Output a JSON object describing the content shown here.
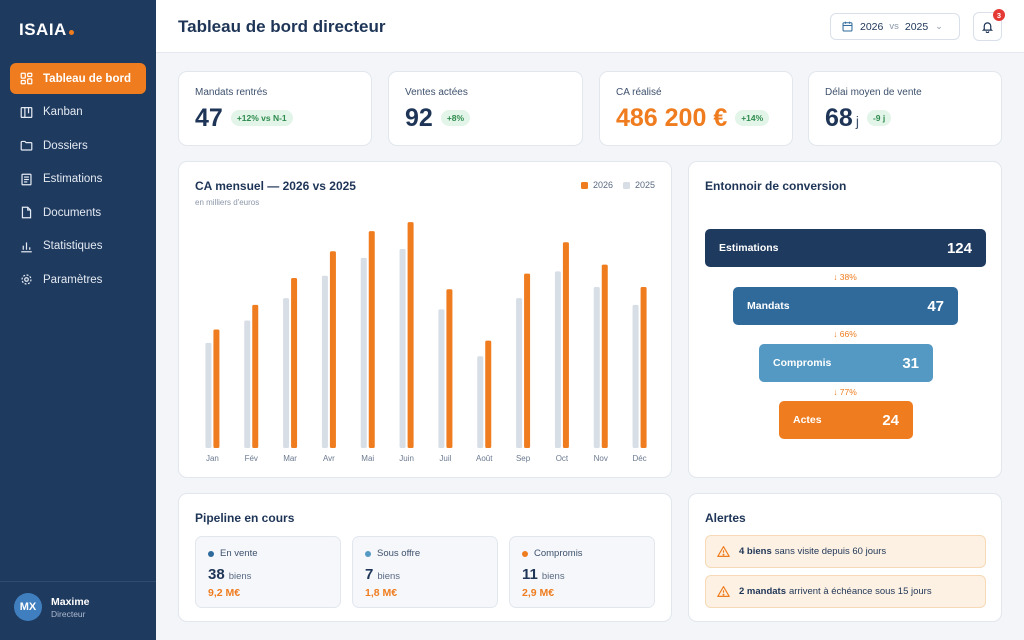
{
  "brand": {
    "name": "ISAIA",
    "accent": "#ef7c1e"
  },
  "sidebar": {
    "items": [
      {
        "label": "Tableau de bord",
        "icon": "dashboard-icon"
      },
      {
        "label": "Kanban",
        "icon": "kanban-icon"
      },
      {
        "label": "Dossiers",
        "icon": "folder-icon"
      },
      {
        "label": "Estimations",
        "icon": "estimate-icon"
      },
      {
        "label": "Documents",
        "icon": "document-icon"
      },
      {
        "label": "Statistiques",
        "icon": "stats-icon"
      },
      {
        "label": "Paramètres",
        "icon": "gear-icon"
      }
    ],
    "active": "Tableau de bord",
    "user": {
      "initials": "MX",
      "name": "Maxime",
      "role": "Directeur"
    }
  },
  "header": {
    "title": "Tableau de bord directeur",
    "compare": {
      "year_a": "2026",
      "vs": "vs",
      "year_b": "2025"
    },
    "notifications": "3"
  },
  "kpis": [
    {
      "label": "Mandats rentrés",
      "value": "47",
      "unit": "",
      "badge": "+12% vs N-1",
      "highlight": false
    },
    {
      "label": "Ventes actées",
      "value": "92",
      "unit": "",
      "badge": "+8%",
      "highlight": false
    },
    {
      "label": "CA réalisé",
      "value": "486 200 €",
      "unit": "",
      "badge": "+14%",
      "highlight": true
    },
    {
      "label": "Délai moyen de vente",
      "value": "68",
      "unit": "j",
      "badge": "-9 j",
      "highlight": false
    }
  ],
  "chart": {
    "title": "CA mensuel — 2026 vs 2025",
    "subtitle": "en milliers d'euros",
    "legend": [
      "2026",
      "2025"
    ]
  },
  "chart_data": {
    "type": "bar",
    "title": "CA mensuel — 2026 vs 2025",
    "subtitle": "en milliers d'euros",
    "categories": [
      "Jan",
      "Fév",
      "Mar",
      "Avr",
      "Mai",
      "Juin",
      "Juil",
      "Août",
      "Sep",
      "Oct",
      "Nov",
      "Déc"
    ],
    "series": [
      {
        "name": "2026",
        "color": "#ef7c1e",
        "values": [
          53,
          64,
          76,
          88,
          97,
          101,
          71,
          48,
          78,
          92,
          82,
          72
        ]
      },
      {
        "name": "2025",
        "color": "#d8dee6",
        "values": [
          47,
          57,
          67,
          77,
          85,
          89,
          62,
          41,
          67,
          79,
          72,
          64
        ]
      }
    ],
    "ylim": [
      0,
      110
    ],
    "grid": false,
    "legend_position": "top-right"
  },
  "funnel": {
    "title": "Entonnoir de conversion",
    "steps": [
      {
        "label": "Estimations",
        "value": "124",
        "color": "#1f3a5f"
      },
      {
        "label": "Mandats",
        "value": "47",
        "color": "#2f6a9b"
      },
      {
        "label": "Compromis",
        "value": "31",
        "color": "#5399c3"
      },
      {
        "label": "Actes",
        "value": "24",
        "color": "#ef7c1e"
      }
    ],
    "rates": [
      "↓ 38%",
      "↓ 66%",
      "↓ 77%"
    ]
  },
  "pipeline": {
    "title": "Pipeline en cours",
    "items": [
      {
        "label": "En vente",
        "count": "38",
        "unit": "biens",
        "amount": "9,2 M€",
        "color": "#2f6a9b"
      },
      {
        "label": "Sous offre",
        "count": "7",
        "unit": "biens",
        "amount": "1,8 M€",
        "color": "#5399c3"
      },
      {
        "label": "Compromis",
        "count": "11",
        "unit": "biens",
        "amount": "2,9 M€",
        "color": "#ef7c1e"
      }
    ]
  },
  "alerts": {
    "title": "Alertes",
    "items": [
      {
        "bold": "4 biens",
        "text": "sans visite depuis 60 jours"
      },
      {
        "bold": "2 mandats",
        "text": "arrivent à échéance sous 15 jours"
      }
    ]
  }
}
